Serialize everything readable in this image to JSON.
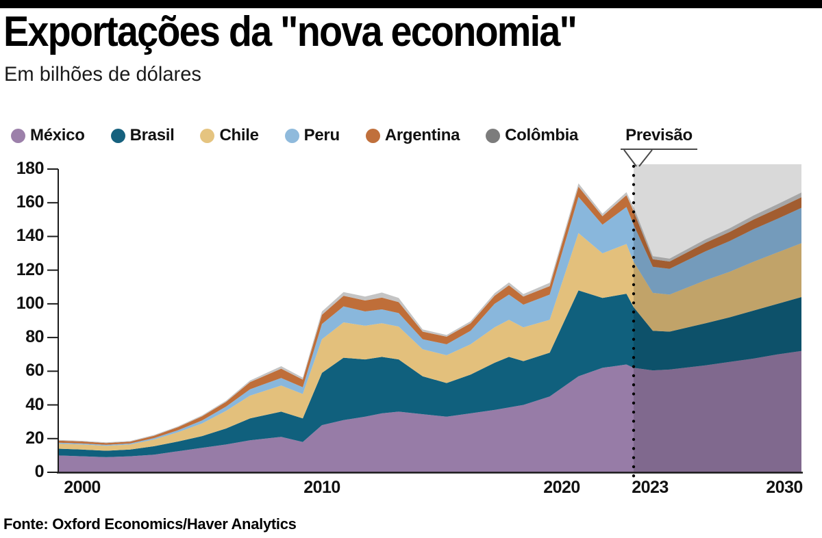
{
  "page": {
    "title": "Exportações da \"nova economia\"",
    "subtitle": "Em bilhões de dólares",
    "forecast_label": "Previsão",
    "source": "Fonte: Oxford Economics/Haver Analytics"
  },
  "chart_data": {
    "type": "area",
    "stacked": true,
    "title": "Exportações da \"nova economia\"",
    "ylabel": "Em bilhões de dólares",
    "x_range": [
      1999,
      2030
    ],
    "ylim": [
      0,
      180
    ],
    "y_ticks": [
      0,
      20,
      40,
      60,
      80,
      100,
      120,
      140,
      160,
      180
    ],
    "x_ticks": [
      2000,
      2010,
      2020,
      2023,
      2030
    ],
    "forecast_start": 2023,
    "forecast_shade_color": "rgba(0,0,0,0.15)",
    "legend_position": "top",
    "grid": false,
    "x": [
      1999,
      2000,
      2001,
      2002,
      2003,
      2004,
      2005,
      2006,
      2007,
      2008.3,
      2009.2,
      2010,
      2010.9,
      2011.8,
      2012.5,
      2013.2,
      2014.2,
      2015.2,
      2016.2,
      2017.2,
      2017.8,
      2018.4,
      2019.5,
      2020.7,
      2021.7,
      2022.7,
      2023,
      2023.8,
      2024.5,
      2026,
      2027,
      2028,
      2029,
      2030
    ],
    "series": [
      {
        "name": "México",
        "color": "#9C80AA",
        "fill": "#977CA7",
        "values": [
          10,
          9.5,
          9,
          9.5,
          10.5,
          12.5,
          14.5,
          16.5,
          19,
          21,
          18,
          28,
          31,
          33,
          35,
          36,
          34.5,
          33,
          35,
          37,
          38.5,
          40,
          45,
          57,
          62,
          64,
          62,
          60.5,
          61,
          63.5,
          65.5,
          67.5,
          70,
          72
        ]
      },
      {
        "name": "Brasil",
        "color": "#16617E",
        "fill": "#10607D",
        "values": [
          4,
          4,
          3.8,
          4,
          5,
          5.8,
          7,
          9.5,
          13,
          15,
          14,
          31,
          37,
          34,
          33.5,
          31,
          22.5,
          20,
          23,
          28,
          30,
          26,
          26,
          51,
          41.5,
          42,
          36,
          23.5,
          22.5,
          25,
          26.5,
          28.5,
          30,
          32
        ]
      },
      {
        "name": "Chile",
        "color": "#E5C480",
        "fill": "#E3C07C",
        "values": [
          3,
          3,
          2.9,
          3,
          4,
          5.5,
          7.5,
          10.5,
          13.5,
          15.5,
          14.5,
          20,
          21,
          20,
          20,
          19.5,
          16,
          16.5,
          18,
          21,
          22,
          20,
          19.5,
          34,
          26.5,
          29.5,
          27,
          22.5,
          22,
          25.5,
          27,
          29,
          30.5,
          32
        ]
      },
      {
        "name": "Peru",
        "color": "#8FBADC",
        "fill": "#89B7DC",
        "values": [
          0.6,
          0.6,
          0.6,
          0.6,
          0.8,
          1.2,
          1.8,
          2.5,
          3.8,
          4.5,
          4,
          9,
          9.5,
          8.5,
          8.2,
          8,
          6,
          6.5,
          8,
          14,
          15,
          13.5,
          15,
          21.5,
          17,
          22,
          22,
          15.5,
          15.3,
          17.2,
          18.2,
          19.3,
          20,
          21
        ]
      },
      {
        "name": "Argentina",
        "color": "#C0703C",
        "fill": "#BF6E39",
        "values": [
          1.2,
          1.2,
          1.1,
          1.1,
          1.4,
          1.8,
          2.4,
          2.8,
          4.2,
          5.5,
          4.5,
          5.5,
          6.3,
          6.5,
          7,
          6.5,
          4.5,
          4.5,
          4.5,
          4.8,
          5.5,
          4.8,
          5,
          6,
          5,
          7,
          8,
          4.5,
          4.3,
          5,
          5.4,
          5.7,
          6,
          6.3
        ]
      },
      {
        "name": "Colômbia",
        "color": "#7C7C7C",
        "fill": "#C4C4C4",
        "values": [
          0.4,
          0.4,
          0.4,
          0.4,
          0.5,
          0.5,
          0.6,
          0.7,
          1,
          1.5,
          1.2,
          2,
          2.2,
          2.3,
          3,
          2.5,
          1.3,
          1,
          1.2,
          1.5,
          1.7,
          1.5,
          2,
          2,
          1.5,
          1.8,
          2.5,
          1.8,
          1.7,
          2.1,
          2.2,
          2.4,
          2.6,
          2.8
        ]
      }
    ]
  }
}
